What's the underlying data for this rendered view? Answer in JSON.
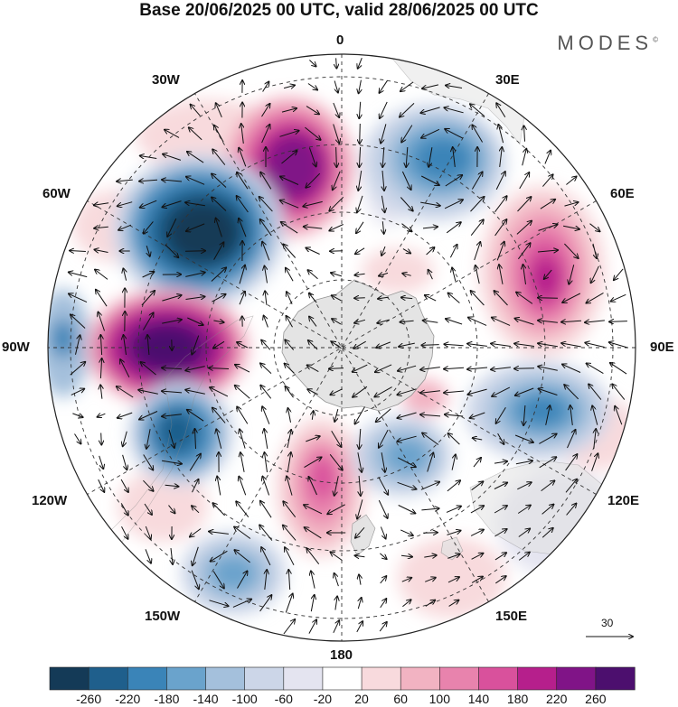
{
  "title": "Base 20/06/2025 00 UTC, valid 28/06/2025 00 UTC",
  "brand": "MODES",
  "brand_mark": "©",
  "longitude_labels": {
    "n0": "0",
    "n30e": "30E",
    "n60e": "60E",
    "n90e": "90E",
    "n120e": "120E",
    "n150e": "150E",
    "n180": "180",
    "n150w": "150W",
    "n120w": "120W",
    "n90w": "90W",
    "n60w": "60W",
    "n30w": "30W"
  },
  "vector_reference": "30",
  "colorbar": {
    "labels": [
      "-260",
      "-220",
      "-180",
      "-140",
      "-100",
      "-60",
      "-20",
      "20",
      "60",
      "100",
      "140",
      "180",
      "220",
      "260"
    ],
    "colors": [
      "#143a57",
      "#1f5f8c",
      "#3a84b8",
      "#6aa3cc",
      "#a4c0dc",
      "#ccd6e8",
      "#e4e4f0",
      "#ffffff",
      "#f8dadd",
      "#f2b3c2",
      "#e883ad",
      "#d9519c",
      "#b61f8c",
      "#801487",
      "#4c0f6e"
    ]
  },
  "map_colors": {
    "land": "#e2e2e2",
    "coast": "#8a8a8a",
    "grid": "#333333",
    "arrow": "#111111"
  }
}
